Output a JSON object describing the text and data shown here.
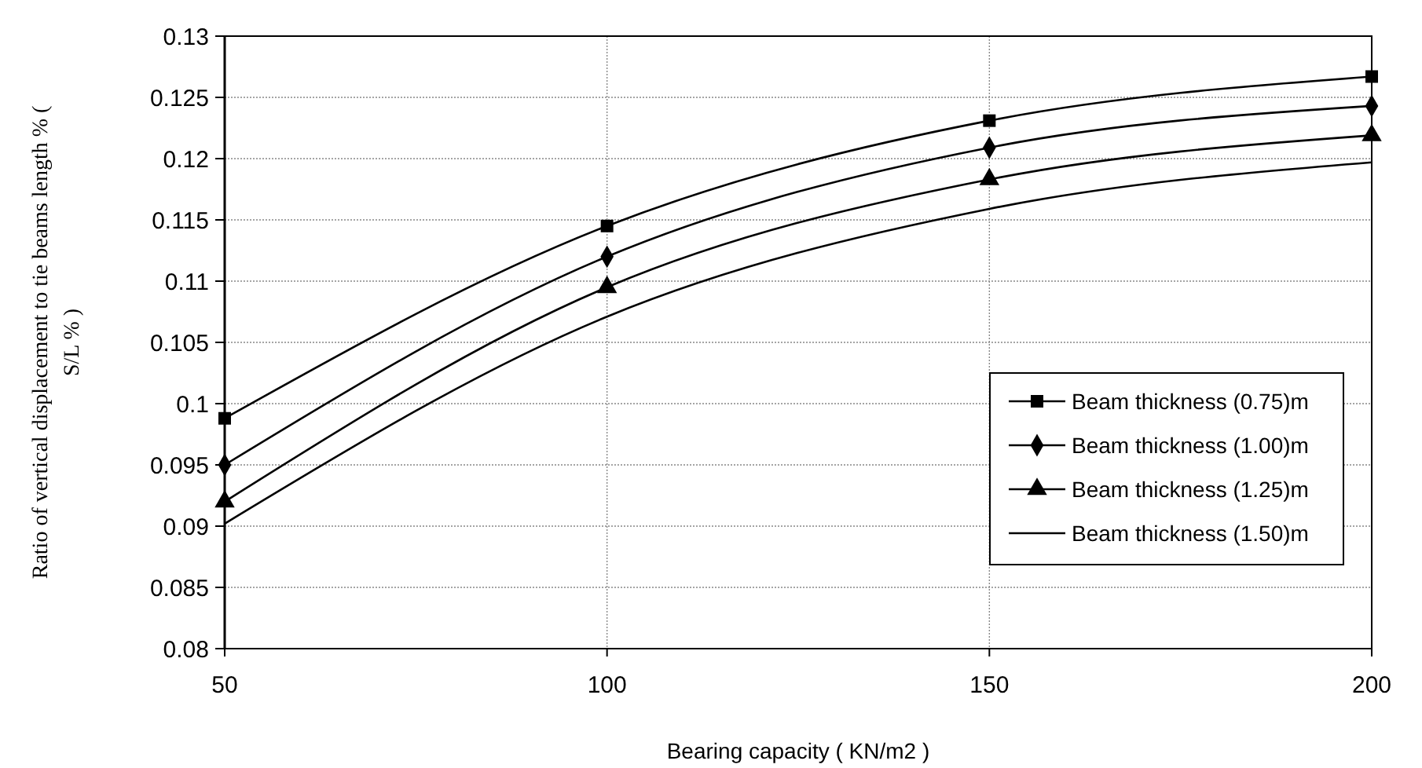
{
  "chart_data": {
    "type": "line",
    "xlabel": "Bearing capacity ( KN/m2 )",
    "ylabel": "Ratio of vertical displacement to tie beams length % ( S/L % )",
    "x": [
      50,
      100,
      150,
      200
    ],
    "xlim": [
      50,
      200
    ],
    "xticks": [
      50,
      100,
      150,
      200
    ],
    "ylim": [
      0.08,
      0.13
    ],
    "yticks": [
      0.08,
      0.085,
      0.09,
      0.095,
      0.1,
      0.105,
      0.11,
      0.115,
      0.12,
      0.125,
      0.13
    ],
    "grid": true,
    "legend": "right",
    "line_style": "solid",
    "series": [
      {
        "name": "Beam thickness (0.75)m",
        "color": "#000000",
        "marker": "square",
        "values": [
          0.0988,
          0.1145,
          0.1231,
          0.1267
        ]
      },
      {
        "name": "Beam thickness (1.00)m",
        "color": "#000000",
        "marker": "diamond",
        "values": [
          0.095,
          0.112,
          0.1209,
          0.1243
        ]
      },
      {
        "name": "Beam thickness (1.25)m",
        "color": "#000000",
        "marker": "triangle",
        "values": [
          0.092,
          0.1095,
          0.1183,
          0.1219
        ]
      },
      {
        "name": "Beam thickness (1.50)m",
        "color": "#000000",
        "marker": "none",
        "values": [
          0.0902,
          0.1071,
          0.1159,
          0.1197
        ]
      }
    ]
  }
}
